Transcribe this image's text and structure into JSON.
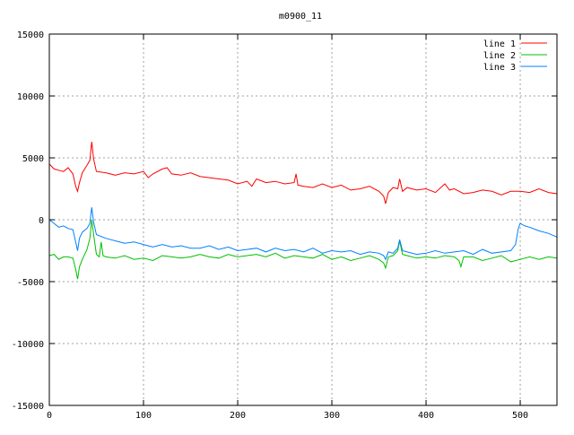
{
  "chart_data": {
    "type": "line",
    "title": "m0900_11",
    "xlabel": "",
    "ylabel": "",
    "xlim": [
      0,
      539
    ],
    "ylim": [
      -15000,
      15000
    ],
    "grid": true,
    "legend_position": "top-right",
    "x_ticks": [
      "0",
      "100",
      "200",
      "300",
      "400",
      "500"
    ],
    "x_tick_values": [
      0,
      100,
      200,
      300,
      400,
      500
    ],
    "y_ticks": [
      "-15000",
      "-10000",
      "-5000",
      "0",
      "5000",
      "10000",
      "15000"
    ],
    "y_tick_values": [
      -15000,
      -10000,
      -5000,
      0,
      5000,
      10000,
      15000
    ],
    "series": [
      {
        "name": "line 1",
        "color": "#ff0000",
        "x": [
          0,
          5,
          10,
          15,
          20,
          25,
          28,
          30,
          32,
          35,
          40,
          43,
          45,
          47,
          50,
          60,
          70,
          80,
          90,
          100,
          105,
          110,
          120,
          125,
          130,
          140,
          150,
          160,
          170,
          180,
          190,
          200,
          210,
          215,
          220,
          230,
          240,
          250,
          260,
          262,
          264,
          270,
          280,
          290,
          300,
          310,
          320,
          330,
          340,
          350,
          355,
          357,
          360,
          365,
          370,
          372,
          375,
          380,
          390,
          400,
          410,
          420,
          425,
          430,
          440,
          450,
          460,
          470,
          480,
          490,
          500,
          510,
          520,
          530,
          539
        ],
        "values": [
          4500,
          4100,
          4000,
          3900,
          4200,
          3700,
          2700,
          2300,
          3000,
          3800,
          4400,
          4800,
          6300,
          4900,
          3900,
          3800,
          3600,
          3800,
          3700,
          3900,
          3400,
          3700,
          4100,
          4200,
          3700,
          3600,
          3800,
          3500,
          3400,
          3300,
          3200,
          2900,
          3100,
          2700,
          3300,
          3000,
          3100,
          2900,
          3000,
          3700,
          2800,
          2700,
          2600,
          2900,
          2600,
          2800,
          2400,
          2500,
          2700,
          2300,
          1900,
          1300,
          2200,
          2600,
          2500,
          3300,
          2300,
          2600,
          2400,
          2500,
          2200,
          2900,
          2400,
          2500,
          2100,
          2200,
          2400,
          2300,
          2000,
          2300,
          2300,
          2200,
          2500,
          2200,
          2100
        ]
      },
      {
        "name": "line 2",
        "color": "#00c000",
        "x": [
          0,
          5,
          10,
          15,
          20,
          25,
          28,
          30,
          32,
          35,
          40,
          43,
          45,
          47,
          50,
          53,
          55,
          57,
          60,
          70,
          80,
          90,
          100,
          110,
          120,
          130,
          140,
          150,
          160,
          170,
          180,
          190,
          200,
          210,
          220,
          230,
          240,
          250,
          260,
          270,
          280,
          290,
          300,
          310,
          320,
          330,
          340,
          350,
          355,
          357,
          360,
          365,
          370,
          372,
          375,
          380,
          390,
          400,
          410,
          420,
          430,
          435,
          437,
          440,
          450,
          460,
          470,
          480,
          490,
          500,
          510,
          520,
          530,
          539
        ],
        "values": [
          -2900,
          -2800,
          -3200,
          -3000,
          -3000,
          -3100,
          -4000,
          -4800,
          -3800,
          -3200,
          -2400,
          -1500,
          0,
          -1200,
          -2800,
          -3000,
          -1800,
          -2900,
          -3000,
          -3100,
          -2900,
          -3200,
          -3100,
          -3300,
          -2900,
          -3000,
          -3100,
          -3000,
          -2800,
          -3000,
          -3100,
          -2800,
          -3000,
          -2900,
          -2800,
          -3000,
          -2700,
          -3100,
          -2900,
          -3000,
          -3100,
          -2800,
          -3200,
          -3000,
          -3300,
          -3100,
          -2900,
          -3200,
          -3500,
          -3900,
          -3000,
          -2900,
          -2500,
          -1700,
          -2800,
          -2900,
          -3100,
          -3000,
          -3100,
          -2900,
          -3000,
          -3300,
          -3800,
          -3000,
          -3000,
          -3300,
          -3100,
          -2900,
          -3400,
          -3200,
          -3000,
          -3200,
          -3000,
          -3100
        ]
      },
      {
        "name": "line 3",
        "color": "#0080ff",
        "x": [
          0,
          5,
          10,
          15,
          20,
          25,
          28,
          30,
          32,
          35,
          40,
          43,
          45,
          47,
          50,
          60,
          70,
          80,
          90,
          100,
          110,
          120,
          130,
          140,
          150,
          160,
          170,
          180,
          190,
          200,
          210,
          220,
          230,
          240,
          250,
          260,
          270,
          280,
          290,
          300,
          310,
          320,
          330,
          340,
          350,
          355,
          357,
          360,
          365,
          370,
          372,
          375,
          380,
          390,
          400,
          410,
          420,
          430,
          440,
          450,
          460,
          470,
          480,
          490,
          495,
          498,
          500,
          505,
          510,
          520,
          530,
          539
        ],
        "values": [
          0,
          -300,
          -600,
          -500,
          -700,
          -800,
          -1800,
          -2500,
          -1500,
          -1000,
          -700,
          -300,
          1000,
          -200,
          -1200,
          -1500,
          -1700,
          -1900,
          -1800,
          -2000,
          -2200,
          -2000,
          -2200,
          -2100,
          -2300,
          -2300,
          -2100,
          -2400,
          -2200,
          -2500,
          -2400,
          -2300,
          -2600,
          -2300,
          -2500,
          -2400,
          -2600,
          -2300,
          -2700,
          -2500,
          -2600,
          -2500,
          -2800,
          -2600,
          -2700,
          -2900,
          -3200,
          -2600,
          -2700,
          -2300,
          -1600,
          -2500,
          -2600,
          -2800,
          -2700,
          -2500,
          -2700,
          -2600,
          -2500,
          -2800,
          -2400,
          -2700,
          -2600,
          -2500,
          -2000,
          -700,
          -300,
          -500,
          -600,
          -900,
          -1100,
          -1400
        ]
      }
    ]
  }
}
